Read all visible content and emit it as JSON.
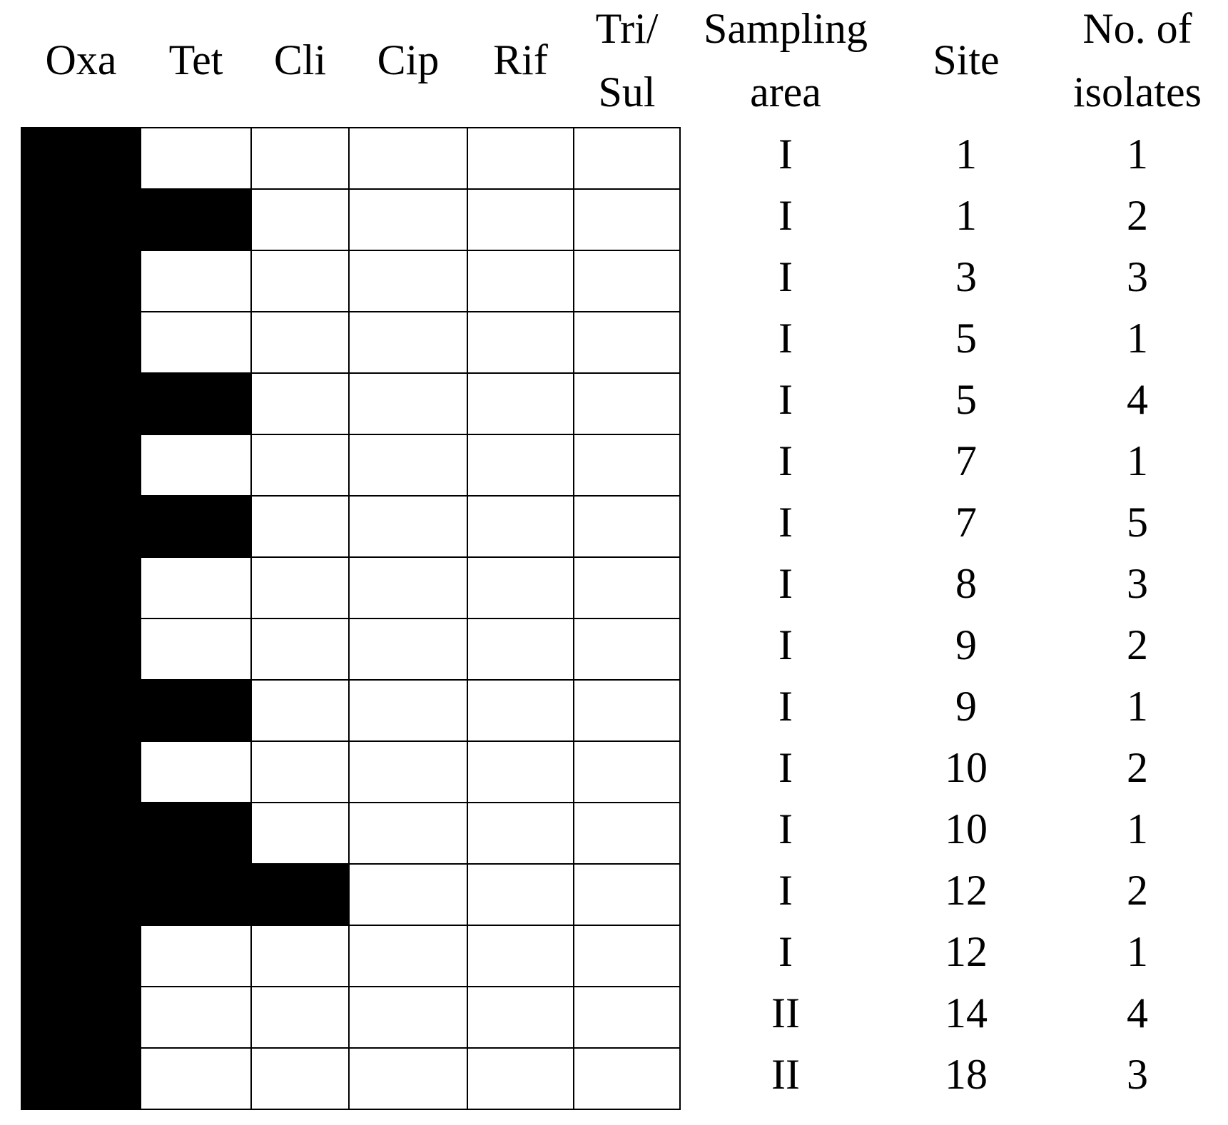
{
  "columns": [
    [
      "Oxa"
    ],
    [
      "Tet"
    ],
    [
      "Cli"
    ],
    [
      "Cip"
    ],
    [
      "Rif"
    ],
    [
      "Tri/",
      "Sul"
    ]
  ],
  "info_columns": [
    [
      "Sampling",
      "area"
    ],
    [
      "Site"
    ],
    [
      "No. of",
      "isolates"
    ]
  ],
  "rows": [
    {
      "resistant": [
        true,
        false,
        false,
        false,
        false,
        false
      ],
      "area": "I",
      "site": 1,
      "isolates": 1
    },
    {
      "resistant": [
        true,
        true,
        false,
        false,
        false,
        false
      ],
      "area": "I",
      "site": 1,
      "isolates": 2
    },
    {
      "resistant": [
        true,
        false,
        false,
        false,
        false,
        false
      ],
      "area": "I",
      "site": 3,
      "isolates": 3
    },
    {
      "resistant": [
        true,
        false,
        false,
        false,
        false,
        false
      ],
      "area": "I",
      "site": 5,
      "isolates": 1
    },
    {
      "resistant": [
        true,
        true,
        false,
        false,
        false,
        false
      ],
      "area": "I",
      "site": 5,
      "isolates": 4
    },
    {
      "resistant": [
        true,
        false,
        false,
        false,
        false,
        false
      ],
      "area": "I",
      "site": 7,
      "isolates": 1
    },
    {
      "resistant": [
        true,
        true,
        false,
        false,
        false,
        false
      ],
      "area": "I",
      "site": 7,
      "isolates": 5
    },
    {
      "resistant": [
        true,
        false,
        false,
        false,
        false,
        false
      ],
      "area": "I",
      "site": 8,
      "isolates": 3
    },
    {
      "resistant": [
        true,
        false,
        false,
        false,
        false,
        false
      ],
      "area": "I",
      "site": 9,
      "isolates": 2
    },
    {
      "resistant": [
        true,
        true,
        false,
        false,
        false,
        false
      ],
      "area": "I",
      "site": 9,
      "isolates": 1
    },
    {
      "resistant": [
        true,
        false,
        false,
        false,
        false,
        false
      ],
      "area": "I",
      "site": 10,
      "isolates": 2
    },
    {
      "resistant": [
        true,
        true,
        false,
        false,
        false,
        false
      ],
      "area": "I",
      "site": 10,
      "isolates": 1
    },
    {
      "resistant": [
        true,
        true,
        true,
        false,
        false,
        false
      ],
      "area": "I",
      "site": 12,
      "isolates": 2
    },
    {
      "resistant": [
        true,
        false,
        false,
        false,
        false,
        false
      ],
      "area": "I",
      "site": 12,
      "isolates": 1
    },
    {
      "resistant": [
        true,
        false,
        false,
        false,
        false,
        false
      ],
      "area": "II",
      "site": 14,
      "isolates": 4
    },
    {
      "resistant": [
        true,
        false,
        false,
        false,
        false,
        false
      ],
      "area": "II",
      "site": 18,
      "isolates": 3
    }
  ]
}
